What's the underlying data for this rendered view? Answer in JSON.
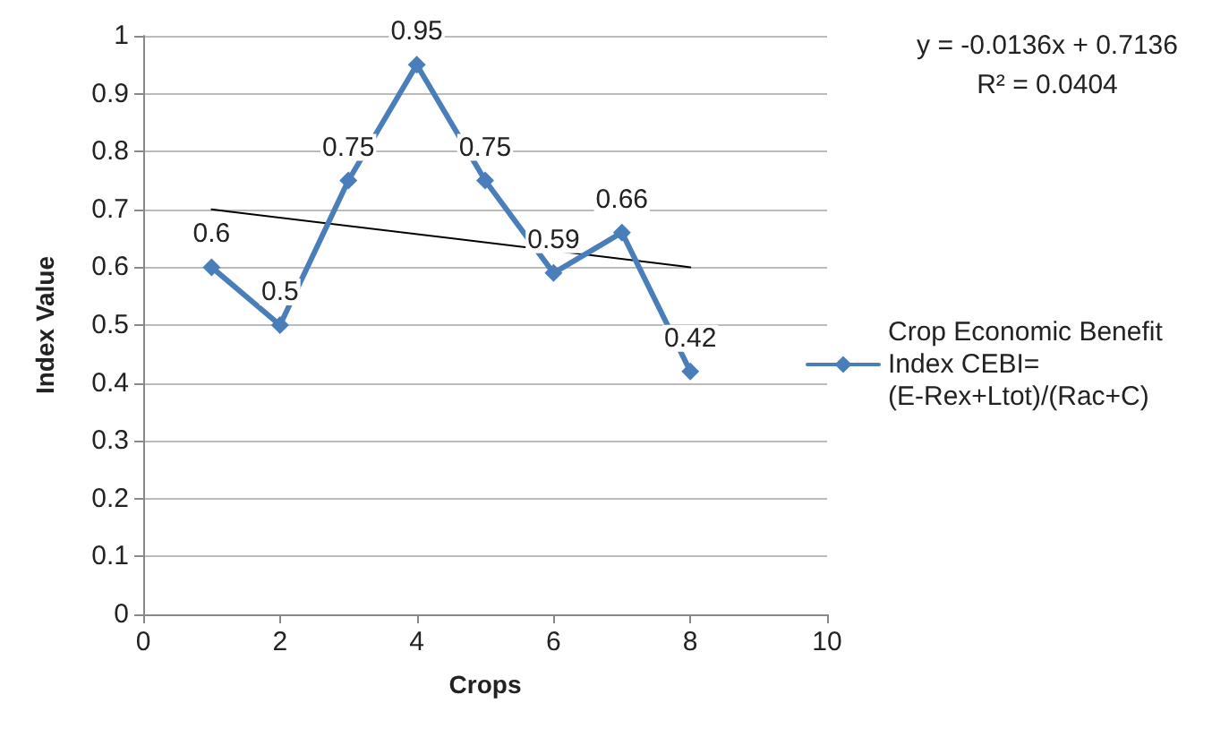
{
  "chart_data": {
    "type": "line",
    "xlabel": "Crops",
    "ylabel": "Index Value",
    "xlim": [
      0,
      10
    ],
    "xticks": [
      0,
      2,
      4,
      6,
      8,
      10
    ],
    "ylim": [
      0,
      1
    ],
    "yticks": [
      0,
      0.1,
      0.2,
      0.3,
      0.4,
      0.5,
      0.6,
      0.7,
      0.8,
      0.9,
      1
    ],
    "grid": "y",
    "legend": "right",
    "marker": "diamond",
    "line_style": "solid",
    "annotations": [
      "y = -0.0136x + 0.7136",
      "R² = 0.0404"
    ],
    "series": [
      {
        "name": "Crop Economic Benefit Index CEBI= (E-Rex+Ltot)/(Rac+C)",
        "color": "#4a7ebb",
        "x": [
          1,
          2,
          3,
          4,
          5,
          6,
          7,
          8
        ],
        "values": [
          0.6,
          0.5,
          0.75,
          0.95,
          0.75,
          0.59,
          0.66,
          0.42
        ],
        "value_labels": [
          "0.6",
          "0.5",
          "0.75",
          "0.95",
          "0.75",
          "0.59",
          "0.66",
          "0.42"
        ]
      },
      {
        "type": "line",
        "color": "#000000",
        "marker": "none",
        "x": [
          1,
          8
        ],
        "values": [
          0.7,
          0.6
        ]
      }
    ]
  }
}
